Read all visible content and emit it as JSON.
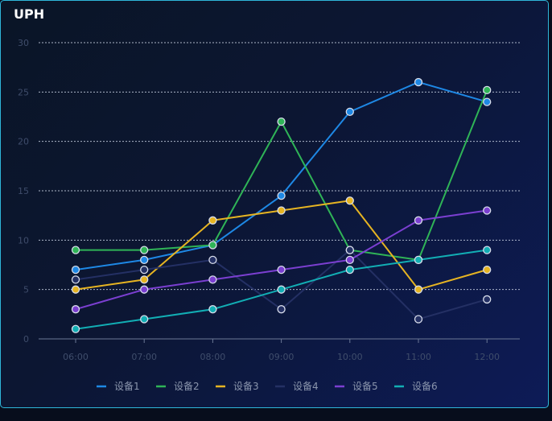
{
  "panel": {
    "title": "UPH"
  },
  "chart_data": {
    "type": "line",
    "title": "UPH",
    "xlabel": "",
    "ylabel": "",
    "ylim": [
      0,
      30
    ],
    "yticks": [
      0,
      5,
      10,
      15,
      20,
      25,
      30
    ],
    "grid": true,
    "legend_position": "bottom",
    "categories": [
      "06:00",
      "07:00",
      "08:00",
      "09:00",
      "10:00",
      "11:00",
      "12:00"
    ],
    "series": [
      {
        "name": "设备1",
        "color": "#1e88e5",
        "values": [
          7,
          8,
          9.5,
          14.5,
          23,
          26,
          24
        ]
      },
      {
        "name": "设备2",
        "color": "#2fb457",
        "values": [
          9,
          9,
          9.5,
          22,
          9,
          8,
          25.2
        ]
      },
      {
        "name": "设备3",
        "color": "#e6b422",
        "values": [
          5,
          6,
          12,
          13,
          14,
          5,
          7
        ]
      },
      {
        "name": "设备4",
        "color": "#243064",
        "values": [
          6,
          7,
          8,
          3,
          9,
          2,
          4
        ]
      },
      {
        "name": "设备5",
        "color": "#7b3fd1",
        "values": [
          3,
          5,
          6,
          7,
          8,
          12,
          13
        ]
      },
      {
        "name": "设备6",
        "color": "#12aeb4",
        "values": [
          1,
          2,
          3,
          5,
          7,
          8,
          9
        ]
      }
    ]
  }
}
